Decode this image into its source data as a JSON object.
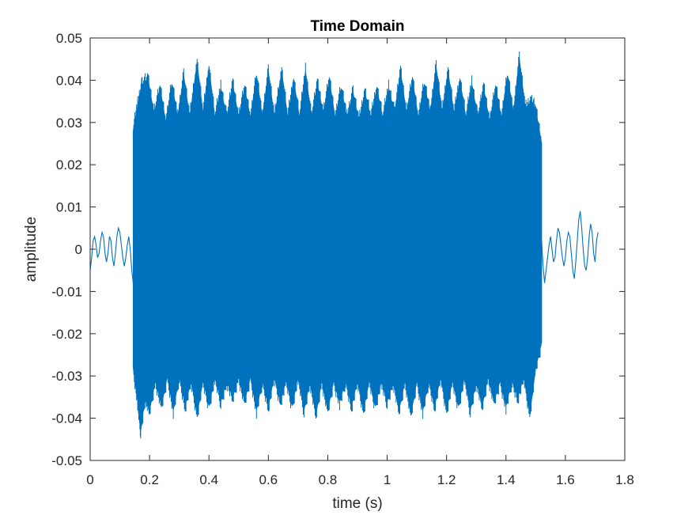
{
  "chart_data": {
    "type": "line",
    "title": "Time Domain",
    "xlabel": "time (s)",
    "ylabel": "amplitude",
    "xlim": [
      0,
      1.8
    ],
    "ylim": [
      -0.05,
      0.05
    ],
    "x_ticks": [
      0,
      0.2,
      0.4,
      0.6,
      0.8,
      1,
      1.2,
      1.4,
      1.6,
      1.8
    ],
    "x_tick_labels": [
      "0",
      "0.2",
      "0.4",
      "0.6",
      "0.8",
      "1",
      "1.2",
      "1.4",
      "1.6",
      "1.8"
    ],
    "y_ticks": [
      0.05,
      0.04,
      0.03,
      0.02,
      0.01,
      0,
      -0.01,
      -0.02,
      -0.03,
      -0.04,
      -0.05
    ],
    "y_tick_labels": [
      "0.05",
      "0.04",
      "0.03",
      "0.02",
      "0.01",
      "0",
      "-0.01",
      "-0.02",
      "-0.03",
      "-0.04",
      "-0.05"
    ],
    "grid": false,
    "series_color": "#0072BD",
    "series": [
      {
        "signal_start_s": 0.0,
        "signal_end_s": 1.71,
        "tone_start_s": 0.145,
        "tone_end_s": 1.52,
        "upper_envelope": [
          [
            0.145,
            0.028
          ],
          [
            0.16,
            0.034
          ],
          [
            0.175,
            0.039
          ],
          [
            0.195,
            0.04
          ],
          [
            0.215,
            0.032
          ],
          [
            0.235,
            0.038
          ],
          [
            0.255,
            0.03
          ],
          [
            0.275,
            0.039
          ],
          [
            0.295,
            0.031
          ],
          [
            0.315,
            0.041
          ],
          [
            0.335,
            0.031
          ],
          [
            0.36,
            0.044
          ],
          [
            0.38,
            0.032
          ],
          [
            0.4,
            0.043
          ],
          [
            0.42,
            0.031
          ],
          [
            0.44,
            0.038
          ],
          [
            0.46,
            0.031
          ],
          [
            0.48,
            0.039
          ],
          [
            0.5,
            0.031
          ],
          [
            0.52,
            0.038
          ],
          [
            0.54,
            0.031
          ],
          [
            0.56,
            0.041
          ],
          [
            0.58,
            0.031
          ],
          [
            0.6,
            0.042
          ],
          [
            0.62,
            0.031
          ],
          [
            0.645,
            0.042
          ],
          [
            0.665,
            0.031
          ],
          [
            0.685,
            0.04
          ],
          [
            0.705,
            0.031
          ],
          [
            0.725,
            0.042
          ],
          [
            0.745,
            0.031
          ],
          [
            0.765,
            0.039
          ],
          [
            0.785,
            0.032
          ],
          [
            0.805,
            0.04
          ],
          [
            0.825,
            0.031
          ],
          [
            0.845,
            0.038
          ],
          [
            0.865,
            0.031
          ],
          [
            0.885,
            0.037
          ],
          [
            0.905,
            0.03
          ],
          [
            0.925,
            0.037
          ],
          [
            0.945,
            0.031
          ],
          [
            0.965,
            0.038
          ],
          [
            0.985,
            0.031
          ],
          [
            1.005,
            0.038
          ],
          [
            1.025,
            0.032
          ],
          [
            1.045,
            0.042
          ],
          [
            1.065,
            0.032
          ],
          [
            1.085,
            0.04
          ],
          [
            1.105,
            0.031
          ],
          [
            1.125,
            0.039
          ],
          [
            1.145,
            0.032
          ],
          [
            1.165,
            0.043
          ],
          [
            1.185,
            0.032
          ],
          [
            1.205,
            0.042
          ],
          [
            1.225,
            0.032
          ],
          [
            1.245,
            0.04
          ],
          [
            1.265,
            0.031
          ],
          [
            1.285,
            0.039
          ],
          [
            1.305,
            0.031
          ],
          [
            1.325,
            0.038
          ],
          [
            1.345,
            0.03
          ],
          [
            1.365,
            0.038
          ],
          [
            1.385,
            0.031
          ],
          [
            1.405,
            0.041
          ],
          [
            1.425,
            0.032
          ],
          [
            1.445,
            0.045
          ],
          [
            1.465,
            0.033
          ],
          [
            1.485,
            0.035
          ],
          [
            1.5,
            0.033
          ],
          [
            1.52,
            0.025
          ]
        ],
        "lower_envelope": [
          [
            0.145,
            -0.028
          ],
          [
            0.16,
            -0.036
          ],
          [
            0.17,
            -0.043
          ],
          [
            0.185,
            -0.035
          ],
          [
            0.2,
            -0.038
          ],
          [
            0.22,
            -0.031
          ],
          [
            0.24,
            -0.037
          ],
          [
            0.26,
            -0.03
          ],
          [
            0.28,
            -0.038
          ],
          [
            0.3,
            -0.03
          ],
          [
            0.32,
            -0.037
          ],
          [
            0.34,
            -0.031
          ],
          [
            0.36,
            -0.039
          ],
          [
            0.38,
            -0.031
          ],
          [
            0.4,
            -0.037
          ],
          [
            0.42,
            -0.03
          ],
          [
            0.44,
            -0.036
          ],
          [
            0.46,
            -0.031
          ],
          [
            0.48,
            -0.035
          ],
          [
            0.5,
            -0.03
          ],
          [
            0.52,
            -0.036
          ],
          [
            0.54,
            -0.03
          ],
          [
            0.56,
            -0.038
          ],
          [
            0.58,
            -0.031
          ],
          [
            0.6,
            -0.037
          ],
          [
            0.62,
            -0.03
          ],
          [
            0.64,
            -0.036
          ],
          [
            0.66,
            -0.031
          ],
          [
            0.68,
            -0.037
          ],
          [
            0.7,
            -0.03
          ],
          [
            0.72,
            -0.038
          ],
          [
            0.74,
            -0.031
          ],
          [
            0.76,
            -0.039
          ],
          [
            0.78,
            -0.031
          ],
          [
            0.8,
            -0.038
          ],
          [
            0.82,
            -0.031
          ],
          [
            0.84,
            -0.036
          ],
          [
            0.86,
            -0.031
          ],
          [
            0.88,
            -0.037
          ],
          [
            0.9,
            -0.031
          ],
          [
            0.92,
            -0.038
          ],
          [
            0.94,
            -0.031
          ],
          [
            0.96,
            -0.037
          ],
          [
            0.98,
            -0.031
          ],
          [
            1.0,
            -0.036
          ],
          [
            1.02,
            -0.031
          ],
          [
            1.04,
            -0.038
          ],
          [
            1.06,
            -0.031
          ],
          [
            1.08,
            -0.039
          ],
          [
            1.1,
            -0.031
          ],
          [
            1.12,
            -0.038
          ],
          [
            1.14,
            -0.031
          ],
          [
            1.16,
            -0.037
          ],
          [
            1.18,
            -0.03
          ],
          [
            1.2,
            -0.038
          ],
          [
            1.22,
            -0.031
          ],
          [
            1.24,
            -0.037
          ],
          [
            1.26,
            -0.03
          ],
          [
            1.28,
            -0.038
          ],
          [
            1.3,
            -0.031
          ],
          [
            1.32,
            -0.037
          ],
          [
            1.34,
            -0.03
          ],
          [
            1.36,
            -0.036
          ],
          [
            1.38,
            -0.031
          ],
          [
            1.4,
            -0.037
          ],
          [
            1.42,
            -0.031
          ],
          [
            1.44,
            -0.035
          ],
          [
            1.46,
            -0.03
          ],
          [
            1.48,
            -0.039
          ],
          [
            1.5,
            -0.028
          ],
          [
            1.52,
            -0.022
          ]
        ],
        "lead_in": [
          [
            0.0,
            -0.005
          ],
          [
            0.005,
            -0.002
          ],
          [
            0.01,
            0.002
          ],
          [
            0.015,
            0.003
          ],
          [
            0.02,
            0.001
          ],
          [
            0.025,
            -0.002
          ],
          [
            0.03,
            -0.001
          ],
          [
            0.035,
            0.002
          ],
          [
            0.04,
            0.004
          ],
          [
            0.045,
            0.003
          ],
          [
            0.05,
            -0.001
          ],
          [
            0.055,
            -0.003
          ],
          [
            0.06,
            -0.001
          ],
          [
            0.065,
            0.003
          ],
          [
            0.07,
            0.002
          ],
          [
            0.075,
            -0.002
          ],
          [
            0.08,
            -0.004
          ],
          [
            0.085,
            -0.001
          ],
          [
            0.09,
            0.003
          ],
          [
            0.095,
            0.005
          ],
          [
            0.1,
            0.004
          ],
          [
            0.105,
            0.001
          ],
          [
            0.11,
            -0.002
          ],
          [
            0.115,
            -0.004
          ],
          [
            0.12,
            -0.002
          ],
          [
            0.125,
            0.001
          ],
          [
            0.13,
            0.003
          ],
          [
            0.135,
            0.0
          ],
          [
            0.14,
            -0.005
          ],
          [
            0.145,
            -0.008
          ]
        ],
        "tail": [
          [
            1.52,
            0.002
          ],
          [
            1.525,
            -0.004
          ],
          [
            1.53,
            -0.008
          ],
          [
            1.535,
            -0.005
          ],
          [
            1.54,
            -0.002
          ],
          [
            1.545,
            0.001
          ],
          [
            1.55,
            0.003
          ],
          [
            1.555,
            0.0
          ],
          [
            1.56,
            -0.003
          ],
          [
            1.565,
            -0.002
          ],
          [
            1.57,
            0.002
          ],
          [
            1.575,
            0.005
          ],
          [
            1.58,
            0.004
          ],
          [
            1.585,
            0.001
          ],
          [
            1.59,
            -0.002
          ],
          [
            1.595,
            -0.004
          ],
          [
            1.6,
            -0.002
          ],
          [
            1.605,
            0.002
          ],
          [
            1.61,
            0.004
          ],
          [
            1.615,
            0.003
          ],
          [
            1.62,
            -0.001
          ],
          [
            1.625,
            -0.005
          ],
          [
            1.63,
            -0.007
          ],
          [
            1.635,
            -0.003
          ],
          [
            1.64,
            0.002
          ],
          [
            1.645,
            0.007
          ],
          [
            1.65,
            0.009
          ],
          [
            1.655,
            0.005
          ],
          [
            1.66,
            0.0
          ],
          [
            1.665,
            -0.004
          ],
          [
            1.67,
            -0.005
          ],
          [
            1.675,
            -0.002
          ],
          [
            1.68,
            0.003
          ],
          [
            1.685,
            0.006
          ],
          [
            1.69,
            0.004
          ],
          [
            1.695,
            -0.001
          ],
          [
            1.7,
            -0.003
          ],
          [
            1.705,
            0.002
          ],
          [
            1.71,
            0.004
          ]
        ]
      }
    ]
  }
}
